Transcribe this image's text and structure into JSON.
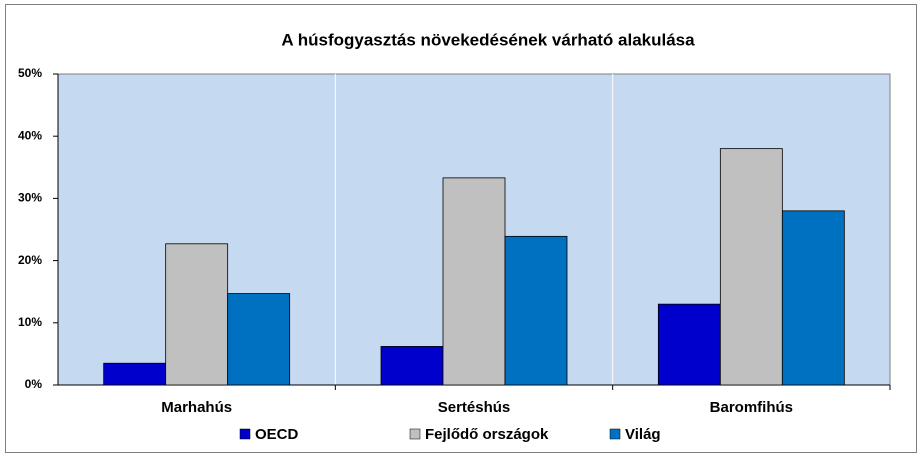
{
  "chart_data": {
    "type": "bar",
    "title": "A húsfogyasztás növekedésének várható alakulása",
    "categories": [
      "Marhahús",
      "Sertéshús",
      "Baromfihús"
    ],
    "series": [
      {
        "name": "OECD",
        "color": "#0000cc",
        "values": [
          3.5,
          6.2,
          13
        ]
      },
      {
        "name": "Fejlődő országok",
        "color": "#c0c0c0",
        "values": [
          22.7,
          33.3,
          38
        ]
      },
      {
        "name": "Világ",
        "color": "#0070c0",
        "values": [
          14.7,
          23.9,
          28
        ]
      }
    ],
    "ylim": [
      0,
      50
    ],
    "yticks": [
      {
        "value": 0,
        "label": "0%"
      },
      {
        "value": 10,
        "label": "10%"
      },
      {
        "value": 20,
        "label": "20%"
      },
      {
        "value": 30,
        "label": "30%"
      },
      {
        "value": 40,
        "label": "40%"
      },
      {
        "value": 50,
        "label": "50%"
      }
    ],
    "grid": false,
    "plot_background": "#c5d9f1",
    "legend": "bottom"
  }
}
